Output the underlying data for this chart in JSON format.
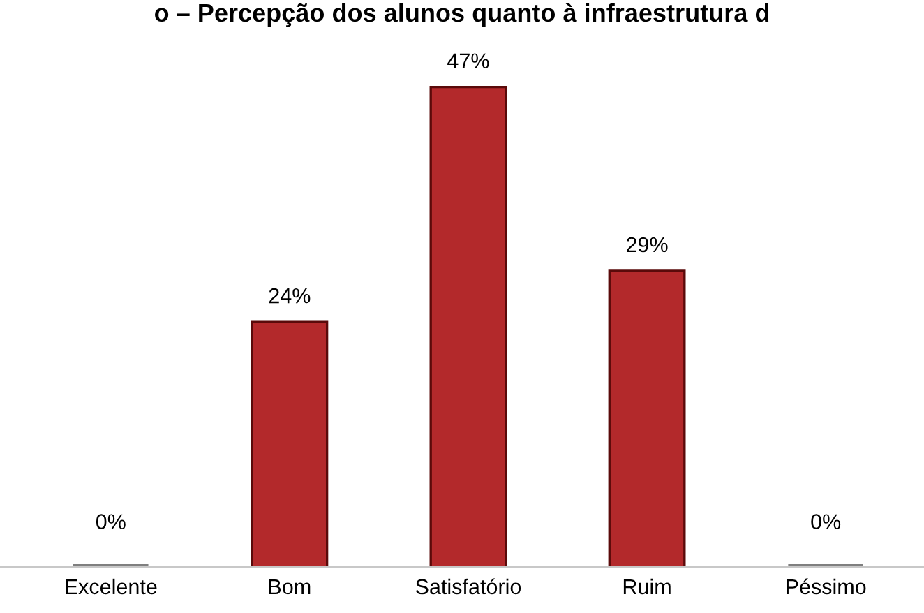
{
  "chart_data": {
    "type": "bar",
    "title": "o – Percepção dos alunos quanto à infraestrutura d",
    "categories": [
      "Excelente",
      "Bom",
      "Satisfatório",
      "Ruim",
      "Péssimo"
    ],
    "values": [
      0,
      24,
      47,
      29,
      0
    ],
    "colors": [
      "#7f7f7f",
      "#b3292b",
      "#b3292b",
      "#b3292b",
      "#7f7f7f"
    ],
    "value_labels": [
      "0%",
      "24%",
      "47%",
      "29%",
      "0%"
    ],
    "grid": false,
    "legend": false
  }
}
